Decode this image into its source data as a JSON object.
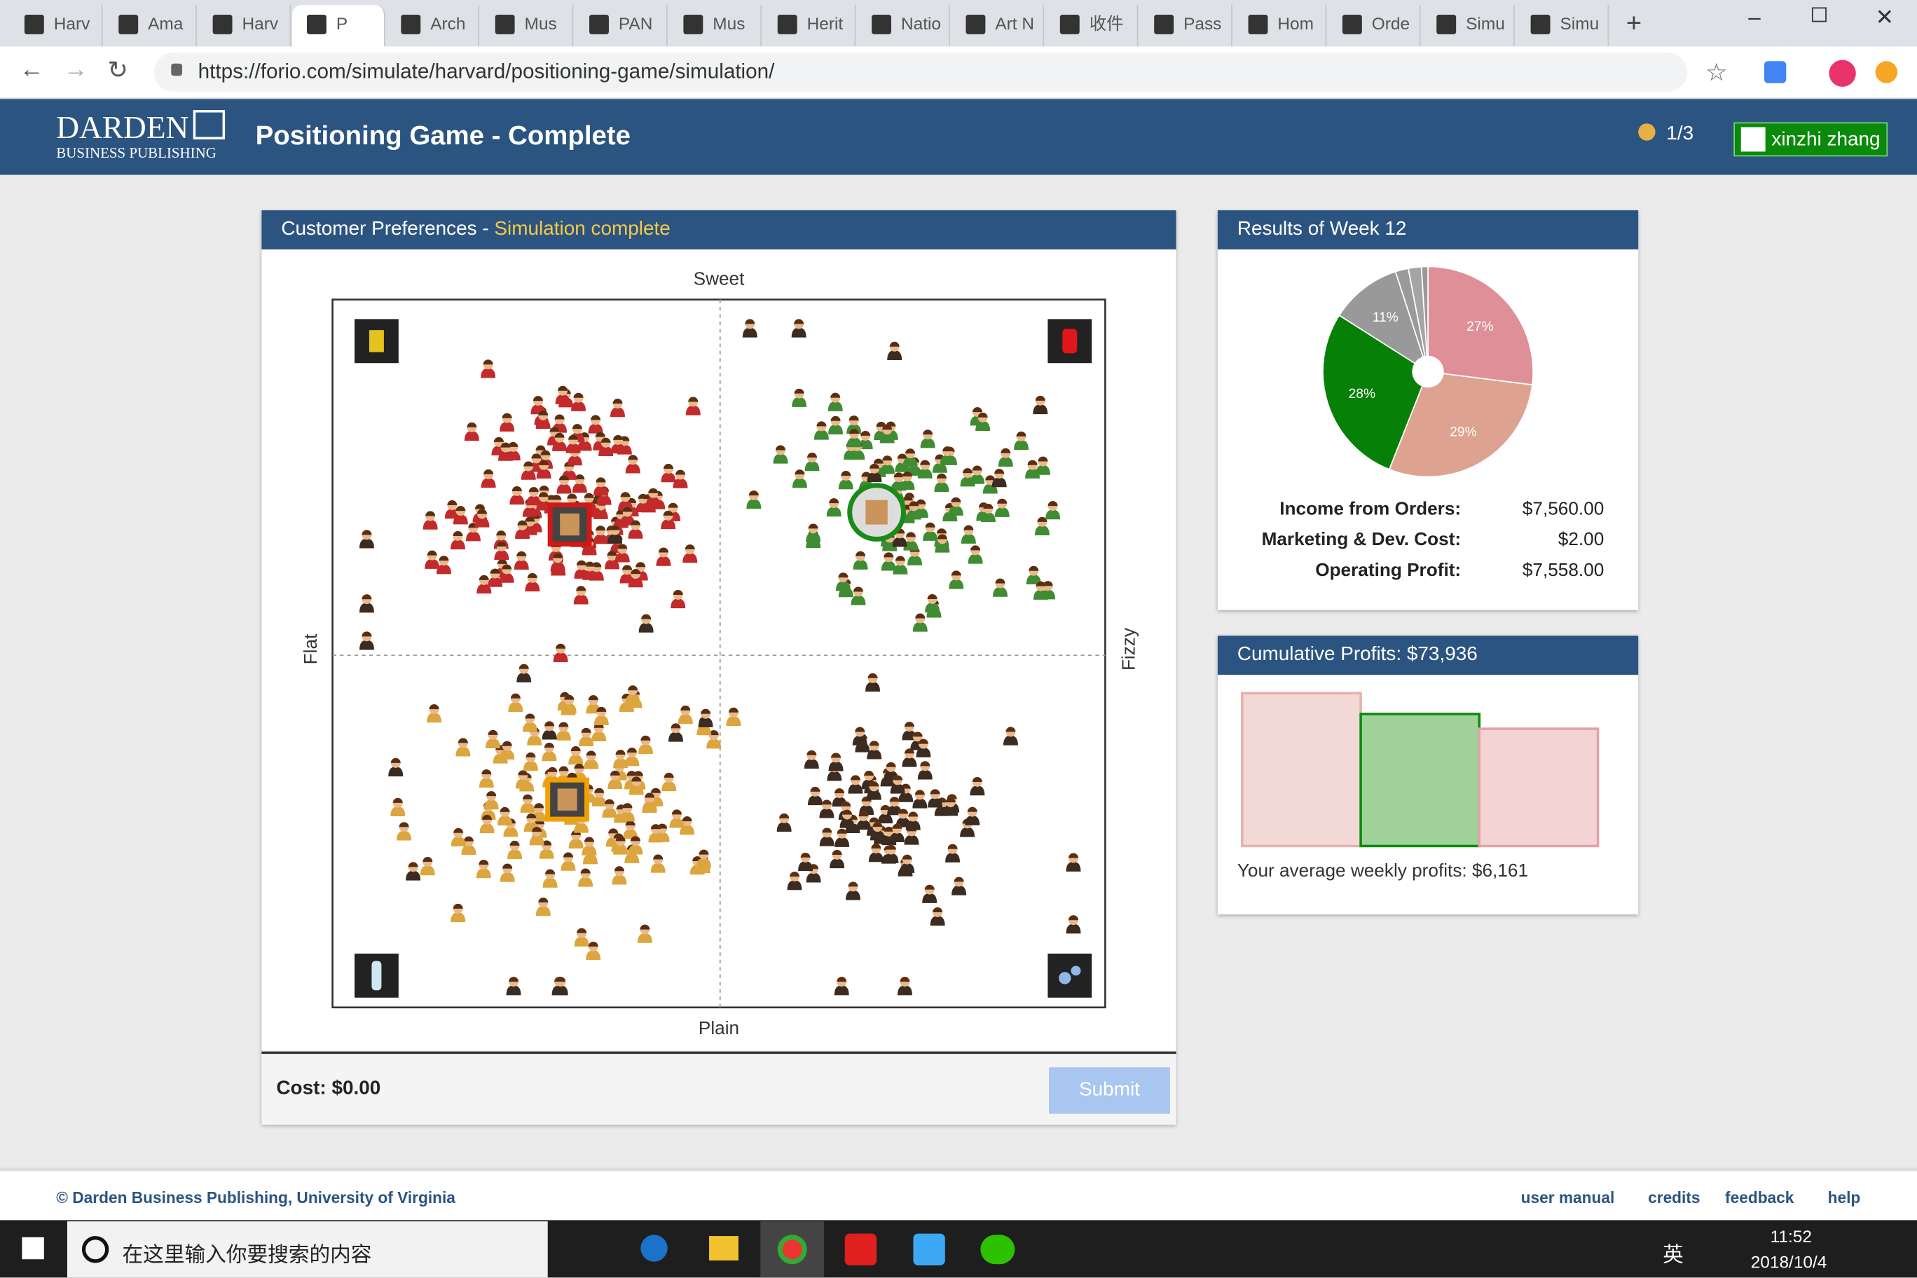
{
  "browser": {
    "tabs": [
      "Harv",
      "Ama",
      "Harv",
      "P",
      "Arch",
      "Mus",
      "PAN",
      "Mus",
      "Herit",
      "Natio",
      "Art N",
      "收件",
      "Pass",
      "Hom",
      "Orde",
      "Simu",
      "Simu"
    ],
    "url": "https://forio.com/simulate/harvard/positioning-game/simulation/"
  },
  "header": {
    "logo_top": "DARDEN",
    "logo_bottom": "BUSINESS PUBLISHING",
    "title": "Positioning Game - Complete",
    "round": "1/3",
    "user": "xinzhi zhang"
  },
  "preferences": {
    "title": "Customer Preferences - ",
    "status": "Simulation complete",
    "top": "Sweet",
    "bottom": "Plain",
    "left": "Flat",
    "right": "Fizzy",
    "cost": "Cost: $0.00",
    "submit": "Submit"
  },
  "results": {
    "title": "Results of Week 12",
    "rows": [
      [
        "Income from Orders:",
        "$7,560.00"
      ],
      [
        "Marketing & Dev. Cost:",
        "$2.00"
      ],
      [
        "Operating Profit:",
        "$7,558.00"
      ]
    ]
  },
  "cumulative": {
    "title": "Cumulative Profits: $73,936",
    "note": "Your average weekly profits: $6,161"
  },
  "chart_data": [
    {
      "type": "pie",
      "values": [
        27,
        29,
        28,
        11,
        2,
        2,
        1
      ],
      "value_labels": [
        "27%",
        "29%",
        "28%",
        "11%",
        null,
        null,
        null
      ],
      "colors": [
        "#df8f97",
        "#dea291",
        "#078007",
        "#999999",
        "#9a9a9a",
        "#a5a5a5",
        "#999999"
      ]
    },
    {
      "type": "bar",
      "values": [
        85600,
        73936,
        65700
      ],
      "colors": [
        "#f3d9d5",
        "#9fd199",
        "#f4d3d5"
      ],
      "strokes": [
        "#e2b3ab",
        "#0a8a0a",
        "#e3a2a6"
      ],
      "ylim": [
        0,
        85600
      ]
    }
  ],
  "footer": {
    "copyright": "© Darden Business Publishing, University of Virginia",
    "links": [
      "user manual",
      "credits",
      "feedback",
      "help"
    ]
  },
  "taskbar": {
    "search": "在这里输入你要搜索的内容",
    "ime": "英",
    "time": "11:52",
    "date": "2018/10/4"
  }
}
